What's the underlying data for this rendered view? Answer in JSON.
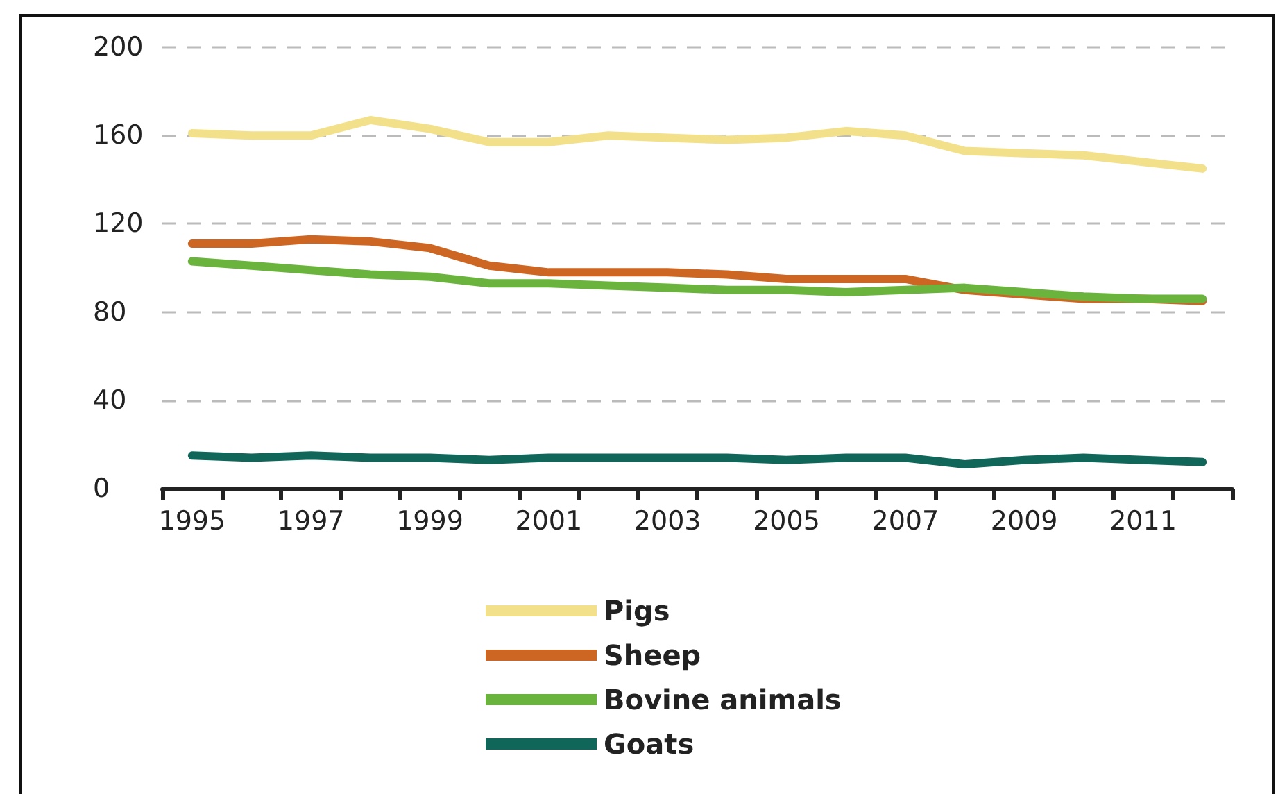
{
  "chart_data": {
    "type": "line",
    "categories": [
      "1995",
      null,
      "1997",
      null,
      "1999",
      null,
      "2001",
      null,
      "2003",
      null,
      "2005",
      null,
      "2007",
      null,
      "2009",
      null,
      "2011",
      null
    ],
    "series": [
      {
        "name": "Pigs",
        "color": "#f3e08a",
        "values": [
          161,
          160,
          160,
          167,
          163,
          157,
          157,
          160,
          159,
          158,
          159,
          162,
          160,
          153,
          152,
          151,
          148,
          145
        ]
      },
      {
        "name": "Sheep",
        "color": "#cc6622",
        "values": [
          111,
          111,
          113,
          112,
          109,
          101,
          98,
          98,
          98,
          97,
          95,
          95,
          95,
          90,
          88,
          86,
          86,
          85
        ]
      },
      {
        "name": "Bovine animals",
        "color": "#6ab43e",
        "values": [
          103,
          101,
          99,
          97,
          96,
          93,
          93,
          92,
          91,
          90,
          90,
          89,
          90,
          91,
          89,
          87,
          86,
          86
        ]
      },
      {
        "name": "Goats",
        "color": "#11665a",
        "values": [
          15,
          14,
          15,
          14,
          14,
          13,
          14,
          14,
          14,
          14,
          13,
          14,
          14,
          11,
          13,
          14,
          13,
          12
        ]
      }
    ],
    "ylim": [
      0,
      200
    ],
    "yticks": [
      0,
      40,
      80,
      120,
      160,
      200
    ],
    "grid": "y",
    "legend": "bottom",
    "marker": "none",
    "line_style": "solid"
  }
}
